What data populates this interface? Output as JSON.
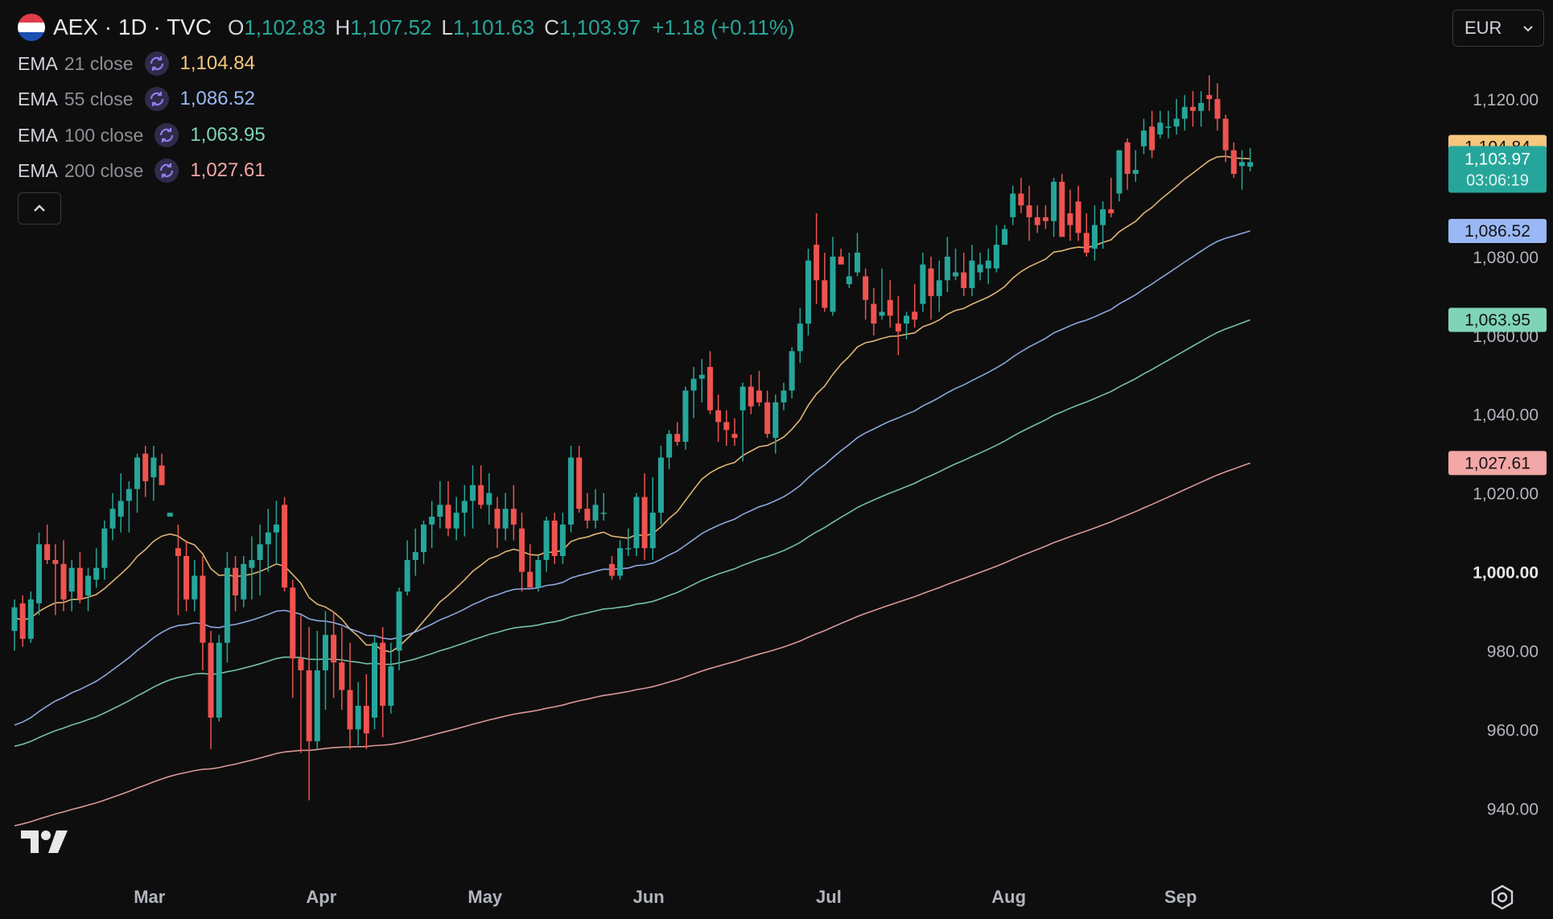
{
  "header": {
    "symbol": "AEX · 1D · TVC",
    "open_label": "O",
    "open": "1,102.83",
    "high_label": "H",
    "high": "1,107.52",
    "low_label": "L",
    "low": "1,101.63",
    "close_label": "C",
    "close": "1,103.97",
    "change": "+1.18 (+0.11%)"
  },
  "indicators": [
    {
      "name": "EMA",
      "params": "21 close",
      "value": "1,104.84",
      "color": "#f5c77e"
    },
    {
      "name": "EMA",
      "params": "55 close",
      "value": "1,086.52",
      "color": "#9ab8f5"
    },
    {
      "name": "EMA",
      "params": "100 close",
      "value": "1,063.95",
      "color": "#7fd4b8"
    },
    {
      "name": "EMA",
      "params": "200 close",
      "value": "1,027.61",
      "color": "#f2a6a6"
    }
  ],
  "currency": "EUR",
  "icons": {
    "flag": "netherlands-flag-icon",
    "indicator": "refresh-icon",
    "collapse": "chevron-up-icon",
    "currency": "chevron-down-icon",
    "logo": "tradingview-logo-icon",
    "settings": "settings-icon"
  },
  "colors": {
    "up": "#26a69a",
    "down": "#ef5350",
    "background": "#0e0e0e"
  },
  "chart_data": {
    "type": "candlestick",
    "y_ticks": [
      "1,120.00",
      "1,080.00",
      "1,060.00",
      "1,040.00",
      "1,020.00",
      "1,000.00",
      "980.00",
      "960.00",
      "940.00"
    ],
    "y_tick_values": [
      1120,
      1080,
      1060,
      1040,
      1020,
      1000,
      980,
      960,
      940
    ],
    "ylim": [
      927,
      1139
    ],
    "x_ticks": [
      "Mar",
      "Apr",
      "May",
      "Jun",
      "Jul",
      "Aug",
      "Sep"
    ],
    "x_tick_positions": [
      16.5,
      37.5,
      57.5,
      77.5,
      99.5,
      121.5,
      142.5
    ],
    "last_price": {
      "value": 1103.97,
      "label": "1,103.97",
      "countdown": "03:06:19",
      "color": "#26a69a"
    },
    "ema_markers": [
      {
        "value": 1104.84,
        "label": "1,104.84",
        "color": "#f5c77e"
      },
      {
        "value": 1086.52,
        "label": "1,086.52",
        "color": "#9ab8f5"
      },
      {
        "value": 1063.95,
        "label": "1,063.95",
        "color": "#7fd4b8"
      },
      {
        "value": 1027.61,
        "label": "1,027.61",
        "color": "#f2a6a6"
      }
    ],
    "candles": [
      [
        0,
        985,
        993,
        980,
        991
      ],
      [
        1,
        992,
        994,
        981,
        983
      ],
      [
        2,
        983,
        995,
        982,
        993
      ],
      [
        3,
        992,
        1010,
        989,
        1007
      ],
      [
        4,
        1007,
        1012,
        1002,
        1003
      ],
      [
        5,
        1003,
        1007,
        989,
        1002
      ],
      [
        6,
        1002,
        1008,
        990,
        993
      ],
      [
        7,
        995,
        1003,
        990,
        1001
      ],
      [
        8,
        1001,
        1005,
        992,
        993
      ],
      [
        9,
        994,
        1001,
        990,
        999
      ],
      [
        10,
        998,
        1006,
        996,
        1001
      ],
      [
        11,
        1001,
        1013,
        998,
        1011
      ],
      [
        12,
        1011,
        1020,
        1008,
        1016
      ],
      [
        13,
        1014,
        1025,
        1010,
        1018
      ],
      [
        14,
        1018,
        1023,
        1010,
        1021
      ],
      [
        15,
        1021,
        1030,
        1015,
        1029
      ],
      [
        16,
        1030,
        1032,
        1019,
        1023
      ],
      [
        17,
        1024,
        1032,
        1018,
        1029
      ],
      [
        18,
        1027,
        1030,
        1022,
        1022
      ],
      [
        19,
        1014,
        1016,
        1016,
        1015
      ],
      [
        20,
        1006,
        1012,
        989,
        1004
      ],
      [
        21,
        1004,
        1008,
        990,
        993
      ],
      [
        22,
        993,
        1003,
        990,
        999
      ],
      [
        23,
        999,
        1004,
        975,
        982
      ],
      [
        24,
        982,
        985,
        955,
        963
      ],
      [
        25,
        963,
        984,
        962,
        982
      ],
      [
        26,
        982,
        1005,
        977,
        1001
      ],
      [
        27,
        1001,
        1004,
        990,
        994
      ],
      [
        28,
        993,
        1004,
        991,
        1002
      ],
      [
        29,
        1001,
        1009,
        993,
        1003
      ],
      [
        30,
        1003,
        1012,
        994,
        1007
      ],
      [
        31,
        1007,
        1016,
        1000,
        1010
      ],
      [
        32,
        1010,
        1018,
        1002,
        1012
      ],
      [
        33,
        1017,
        1019,
        995,
        996
      ],
      [
        34,
        996,
        998,
        968,
        978
      ],
      [
        35,
        978,
        989,
        954,
        975
      ],
      [
        36,
        975,
        986,
        942,
        957
      ],
      [
        37,
        957,
        985,
        955,
        975
      ],
      [
        38,
        975,
        990,
        965,
        984
      ],
      [
        39,
        984,
        990,
        968,
        977
      ],
      [
        40,
        977,
        986,
        965,
        970
      ],
      [
        41,
        970,
        982,
        955,
        960
      ],
      [
        42,
        960,
        972,
        956,
        966
      ],
      [
        43,
        966,
        974,
        955,
        959
      ],
      [
        44,
        963,
        984,
        960,
        982
      ],
      [
        45,
        982,
        986,
        958,
        966
      ],
      [
        46,
        966,
        982,
        964,
        976
      ],
      [
        47,
        980,
        996,
        975,
        995
      ],
      [
        48,
        995,
        1008,
        994,
        1003
      ],
      [
        49,
        1003,
        1011,
        999,
        1005
      ],
      [
        50,
        1005,
        1013,
        1002,
        1012
      ],
      [
        51,
        1012,
        1018,
        1006,
        1014
      ],
      [
        52,
        1014,
        1023,
        1011,
        1017
      ],
      [
        53,
        1017,
        1023,
        1009,
        1011
      ],
      [
        54,
        1011,
        1019,
        1008,
        1015
      ],
      [
        55,
        1015,
        1022,
        1009,
        1018
      ],
      [
        56,
        1018,
        1027,
        1011,
        1022
      ],
      [
        57,
        1022,
        1027,
        1016,
        1017
      ],
      [
        58,
        1017,
        1025,
        1012,
        1020
      ],
      [
        59,
        1016,
        1019,
        1006,
        1011
      ],
      [
        60,
        1011,
        1020,
        1008,
        1016
      ],
      [
        61,
        1016,
        1022,
        1008,
        1012
      ],
      [
        62,
        1011,
        1015,
        995,
        1000
      ],
      [
        63,
        1000,
        1007,
        996,
        996
      ],
      [
        64,
        996,
        1004,
        995,
        1003
      ],
      [
        65,
        1003,
        1014,
        1000,
        1013
      ],
      [
        66,
        1013,
        1015,
        1002,
        1004
      ],
      [
        67,
        1004,
        1015,
        1002,
        1012
      ],
      [
        68,
        1012,
        1032,
        1010,
        1029
      ],
      [
        69,
        1029,
        1032,
        1015,
        1016
      ],
      [
        70,
        1016,
        1020,
        1011,
        1013
      ],
      [
        71,
        1013,
        1021,
        1011,
        1017
      ],
      [
        72,
        1015,
        1020,
        1013,
        1015
      ],
      [
        73,
        1002,
        1004,
        998,
        999
      ],
      [
        74,
        999,
        1008,
        998,
        1006
      ],
      [
        75,
        1006,
        1011,
        1004,
        1006
      ],
      [
        76,
        1006,
        1020,
        1004,
        1019
      ],
      [
        77,
        1019,
        1025,
        1003,
        1006
      ],
      [
        78,
        1006,
        1024,
        1003,
        1015
      ],
      [
        79,
        1015,
        1032,
        1012,
        1029
      ],
      [
        80,
        1029,
        1036,
        1026,
        1035
      ],
      [
        81,
        1035,
        1038,
        1032,
        1033
      ],
      [
        82,
        1033,
        1047,
        1031,
        1046
      ],
      [
        83,
        1046,
        1052,
        1039,
        1049
      ],
      [
        84,
        1049,
        1054,
        1043,
        1050
      ],
      [
        85,
        1052,
        1056,
        1040,
        1041
      ],
      [
        86,
        1041,
        1045,
        1033,
        1038
      ],
      [
        87,
        1038,
        1041,
        1032,
        1036
      ],
      [
        88,
        1035,
        1039,
        1032,
        1034
      ],
      [
        89,
        1041,
        1048,
        1028,
        1047
      ],
      [
        90,
        1047,
        1050,
        1040,
        1042
      ],
      [
        91,
        1046,
        1051,
        1042,
        1043
      ],
      [
        92,
        1043,
        1046,
        1034,
        1035
      ],
      [
        93,
        1034,
        1045,
        1030,
        1043
      ],
      [
        94,
        1043,
        1048,
        1041,
        1046
      ],
      [
        95,
        1046,
        1057,
        1044,
        1056
      ],
      [
        96,
        1056,
        1067,
        1053,
        1063
      ],
      [
        97,
        1063,
        1082,
        1060,
        1079
      ],
      [
        98,
        1083,
        1091,
        1068,
        1074
      ],
      [
        99,
        1074,
        1081,
        1066,
        1067
      ],
      [
        100,
        1066,
        1085,
        1065,
        1080
      ],
      [
        101,
        1080,
        1082,
        1078,
        1078
      ],
      [
        102,
        1073,
        1081,
        1072,
        1075
      ],
      [
        103,
        1076,
        1086,
        1075,
        1081
      ],
      [
        104,
        1075,
        1077,
        1064,
        1069
      ],
      [
        105,
        1068,
        1072,
        1060,
        1063
      ],
      [
        106,
        1065,
        1077,
        1064,
        1066
      ],
      [
        107,
        1069,
        1074,
        1062,
        1065
      ],
      [
        108,
        1063,
        1070,
        1055,
        1061
      ],
      [
        109,
        1063,
        1066,
        1059,
        1065
      ],
      [
        110,
        1066,
        1073,
        1062,
        1064
      ],
      [
        111,
        1068,
        1081,
        1066,
        1078
      ],
      [
        112,
        1077,
        1080,
        1064,
        1070
      ],
      [
        113,
        1070,
        1079,
        1066,
        1074
      ],
      [
        114,
        1074,
        1085,
        1071,
        1080
      ],
      [
        115,
        1075,
        1082,
        1074,
        1076
      ],
      [
        116,
        1076,
        1081,
        1070,
        1072
      ],
      [
        117,
        1072,
        1083,
        1070,
        1079
      ],
      [
        118,
        1076,
        1081,
        1074,
        1078
      ],
      [
        119,
        1077,
        1082,
        1073,
        1079
      ],
      [
        120,
        1077,
        1088,
        1076,
        1083
      ],
      [
        121,
        1083,
        1088,
        1083,
        1087
      ],
      [
        122,
        1090,
        1098,
        1088,
        1096
      ],
      [
        123,
        1096,
        1100,
        1091,
        1093
      ],
      [
        124,
        1093,
        1098,
        1084,
        1090
      ],
      [
        125,
        1090,
        1093,
        1086,
        1088
      ],
      [
        126,
        1090,
        1093,
        1087,
        1089
      ],
      [
        127,
        1089,
        1100,
        1085,
        1099
      ],
      [
        128,
        1099,
        1101,
        1085,
        1085
      ],
      [
        129,
        1091,
        1097,
        1084,
        1088
      ],
      [
        130,
        1094,
        1098,
        1084,
        1086
      ],
      [
        131,
        1086,
        1091,
        1080,
        1081
      ],
      [
        132,
        1082,
        1093,
        1079,
        1088
      ],
      [
        133,
        1088,
        1094,
        1082,
        1092
      ],
      [
        134,
        1092,
        1100,
        1090,
        1091
      ],
      [
        135,
        1096,
        1107,
        1094,
        1107
      ],
      [
        136,
        1109,
        1110,
        1097,
        1101
      ],
      [
        137,
        1101,
        1107,
        1099,
        1102
      ],
      [
        138,
        1108,
        1115,
        1106,
        1112
      ],
      [
        139,
        1113,
        1117,
        1105,
        1107
      ],
      [
        140,
        1111,
        1117,
        1110,
        1114
      ],
      [
        141,
        1113,
        1117,
        1110,
        1113
      ],
      [
        142,
        1113,
        1120,
        1111,
        1115
      ],
      [
        143,
        1115,
        1121,
        1112,
        1118
      ],
      [
        144,
        1118,
        1122,
        1113,
        1117
      ],
      [
        145,
        1117,
        1122,
        1113,
        1119
      ],
      [
        146,
        1121,
        1126,
        1117,
        1120
      ],
      [
        147,
        1120,
        1124,
        1112,
        1115
      ],
      [
        148,
        1115,
        1116,
        1104,
        1107
      ],
      [
        149,
        1107,
        1109,
        1100,
        1101
      ],
      [
        150,
        1103,
        1107,
        1097,
        1104
      ],
      [
        151,
        1102.83,
        1107.52,
        1101.63,
        1103.97
      ]
    ]
  }
}
